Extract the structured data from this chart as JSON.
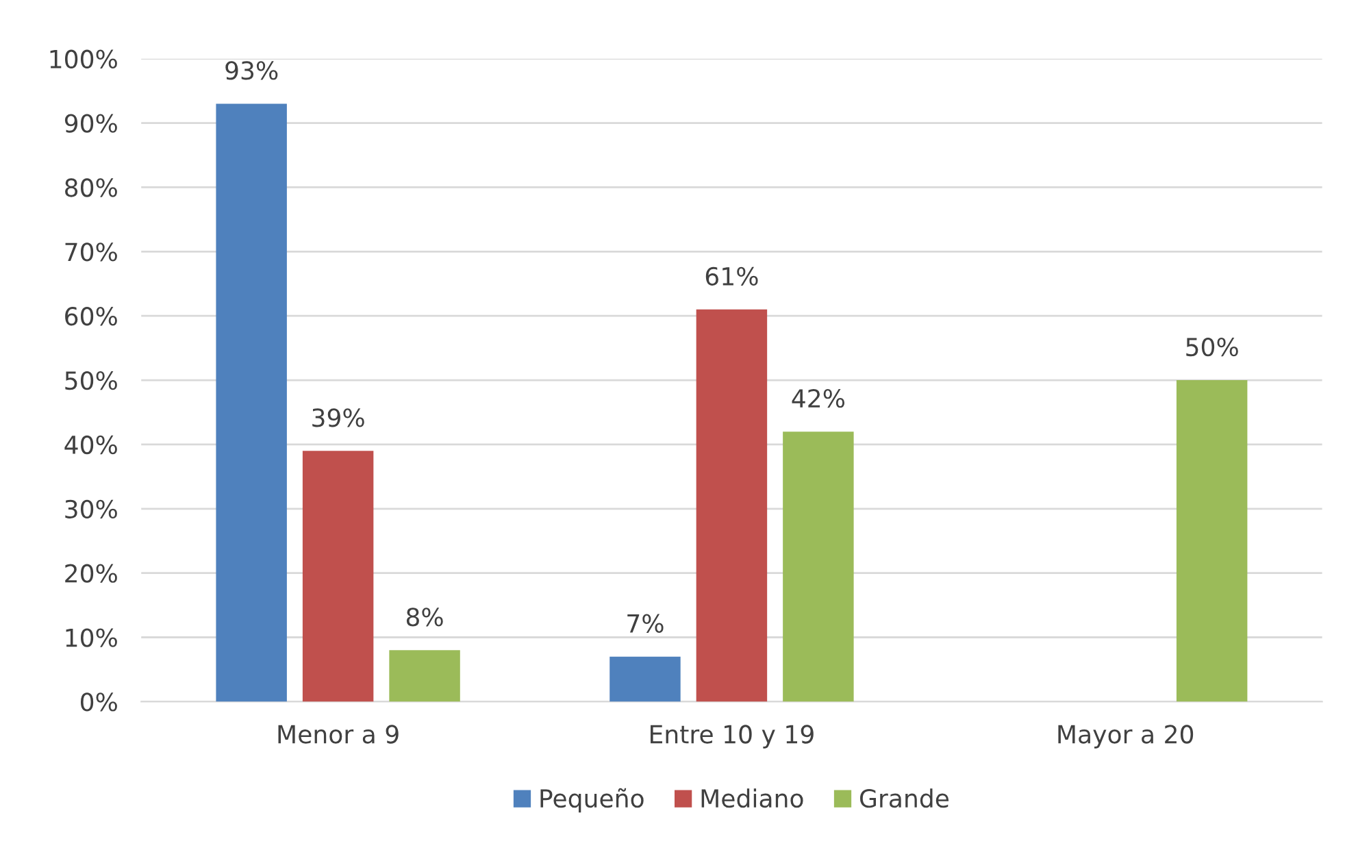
{
  "chart_data": {
    "type": "bar",
    "categories": [
      "Menor a 9",
      "Entre 10 y 19",
      "Mayor a 20"
    ],
    "series": [
      {
        "name": "Pequeño",
        "color": "#4f81bd",
        "values": [
          93,
          7,
          null
        ],
        "value_labels": [
          "93%",
          "7%",
          null
        ]
      },
      {
        "name": "Mediano",
        "color": "#c0504d",
        "values": [
          39,
          61,
          null
        ],
        "value_labels": [
          "39%",
          "61%",
          null
        ]
      },
      {
        "name": "Grande",
        "color": "#9bbb59",
        "values": [
          8,
          42,
          50
        ],
        "value_labels": [
          "8%",
          "42%",
          "50%"
        ]
      }
    ],
    "ylim": [
      0,
      100
    ],
    "yticks": [
      {
        "value": 0,
        "label": "0%"
      },
      {
        "value": 10,
        "label": "10%"
      },
      {
        "value": 20,
        "label": "20%"
      },
      {
        "value": 30,
        "label": "30%"
      },
      {
        "value": 40,
        "label": "40%"
      },
      {
        "value": 50,
        "label": "50%"
      },
      {
        "value": 60,
        "label": "60%"
      },
      {
        "value": 70,
        "label": "70%"
      },
      {
        "value": 80,
        "label": "80%"
      },
      {
        "value": 90,
        "label": "90%"
      },
      {
        "value": 100,
        "label": "100%"
      }
    ],
    "grid": "y",
    "legend": "bottom"
  }
}
